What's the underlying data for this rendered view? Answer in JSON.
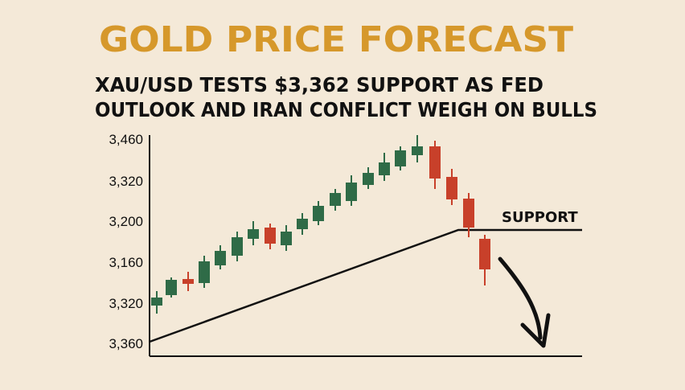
{
  "header": {
    "title": "GOLD PRICE FORECAST",
    "subtitle_lines": [
      "XAU/USD TESTS $3,362 SUPPORT AS FED",
      "OUTLOOK AND IRAN CONFLICT WEIGH ON BULLS"
    ]
  },
  "illustration": {
    "axis_labels": [
      "3,460",
      "3,320",
      "3,200",
      "3,160",
      "3,320",
      "3,360"
    ],
    "support_label": "SUPPORT"
  }
}
